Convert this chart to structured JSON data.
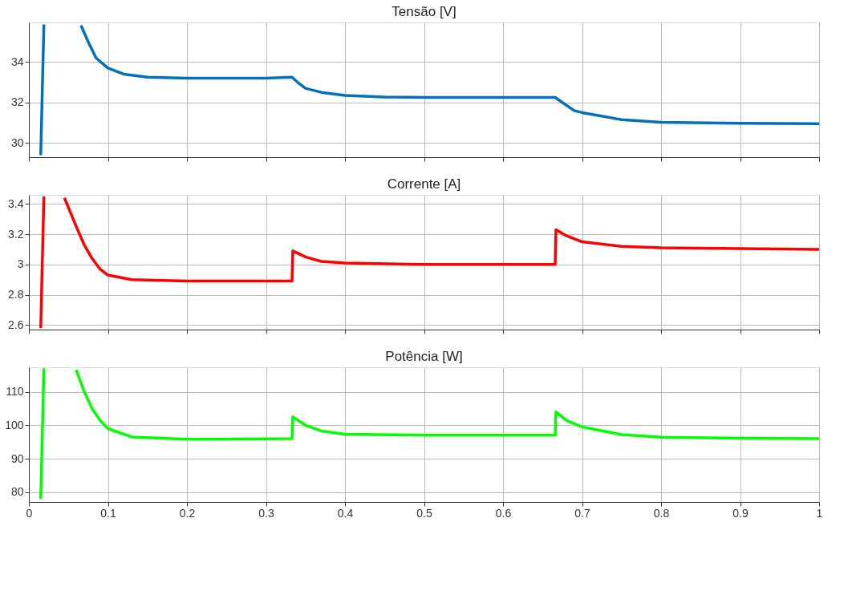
{
  "chart_data": [
    {
      "type": "line",
      "title": "Tensão [V]",
      "grid": true,
      "tick_labels": "y",
      "xlim": [
        0,
        1
      ],
      "xticks": [
        0,
        0.1,
        0.2,
        0.3,
        0.4,
        0.5,
        0.6,
        0.7,
        0.8,
        0.9,
        1
      ],
      "ylim": [
        29.3,
        35.95
      ],
      "yticks": [
        30,
        32,
        34
      ],
      "series": [
        {
          "color": "#0072bd",
          "x": [
            0.015,
            0.019,
            0.04,
            0.066,
            0.075,
            0.085,
            0.1,
            0.12,
            0.15,
            0.2,
            0.3,
            0.333,
            0.34,
            0.35,
            0.37,
            0.4,
            0.45,
            0.5,
            0.666,
            0.675,
            0.69,
            0.7,
            0.75,
            0.8,
            0.9,
            1.0
          ],
          "values": [
            29.4,
            35.85,
            null,
            35.8,
            35.0,
            34.2,
            33.7,
            33.4,
            33.25,
            33.2,
            33.2,
            33.25,
            33.0,
            32.7,
            32.5,
            32.35,
            32.27,
            32.25,
            32.25,
            32.0,
            31.6,
            31.5,
            31.15,
            31.02,
            30.97,
            30.95
          ]
        }
      ]
    },
    {
      "type": "line",
      "title": "Corrente [A]",
      "grid": true,
      "tick_labels": "y",
      "xlim": [
        0,
        1
      ],
      "xticks": [
        0,
        0.1,
        0.2,
        0.3,
        0.4,
        0.5,
        0.6,
        0.7,
        0.8,
        0.9,
        1
      ],
      "ylim": [
        2.57,
        3.46
      ],
      "yticks": [
        2.6,
        2.8,
        3,
        3.2,
        3.4
      ],
      "series": [
        {
          "color": "#ff0000",
          "x": [
            0.015,
            0.019,
            0.03,
            0.045,
            0.06,
            0.07,
            0.08,
            0.09,
            0.1,
            0.13,
            0.2,
            0.333,
            0.334,
            0.35,
            0.37,
            0.4,
            0.5,
            0.666,
            0.667,
            0.68,
            0.7,
            0.75,
            0.8,
            0.9,
            1.0
          ],
          "values": [
            2.58,
            3.45,
            null,
            3.44,
            3.25,
            3.13,
            3.04,
            2.97,
            2.93,
            2.9,
            2.89,
            2.89,
            3.09,
            3.05,
            3.02,
            3.01,
            3.0,
            3.0,
            3.23,
            3.19,
            3.15,
            3.12,
            3.11,
            3.105,
            3.1
          ]
        }
      ]
    },
    {
      "type": "line",
      "title": "Potência [W]",
      "grid": true,
      "xlim": [
        0,
        1
      ],
      "xticks": [
        0,
        0.1,
        0.2,
        0.3,
        0.4,
        0.5,
        0.6,
        0.7,
        0.8,
        0.9,
        1
      ],
      "ylim": [
        77.1,
        117.3
      ],
      "yticks": [
        80,
        90,
        100,
        110
      ],
      "series": [
        {
          "color": "#00ff00",
          "x": [
            0.015,
            0.019,
            0.04,
            0.06,
            0.07,
            0.08,
            0.09,
            0.1,
            0.13,
            0.2,
            0.333,
            0.334,
            0.35,
            0.37,
            0.4,
            0.5,
            0.666,
            0.667,
            0.68,
            0.7,
            0.75,
            0.8,
            0.9,
            1.0
          ],
          "values": [
            78,
            117,
            null,
            116.5,
            110,
            105,
            101.5,
            99,
            96.5,
            95.8,
            96,
            102.5,
            100,
            98.3,
            97.3,
            97,
            97,
            104,
            101.5,
            99.5,
            97.2,
            96.4,
            96.1,
            96
          ]
        }
      ]
    }
  ]
}
